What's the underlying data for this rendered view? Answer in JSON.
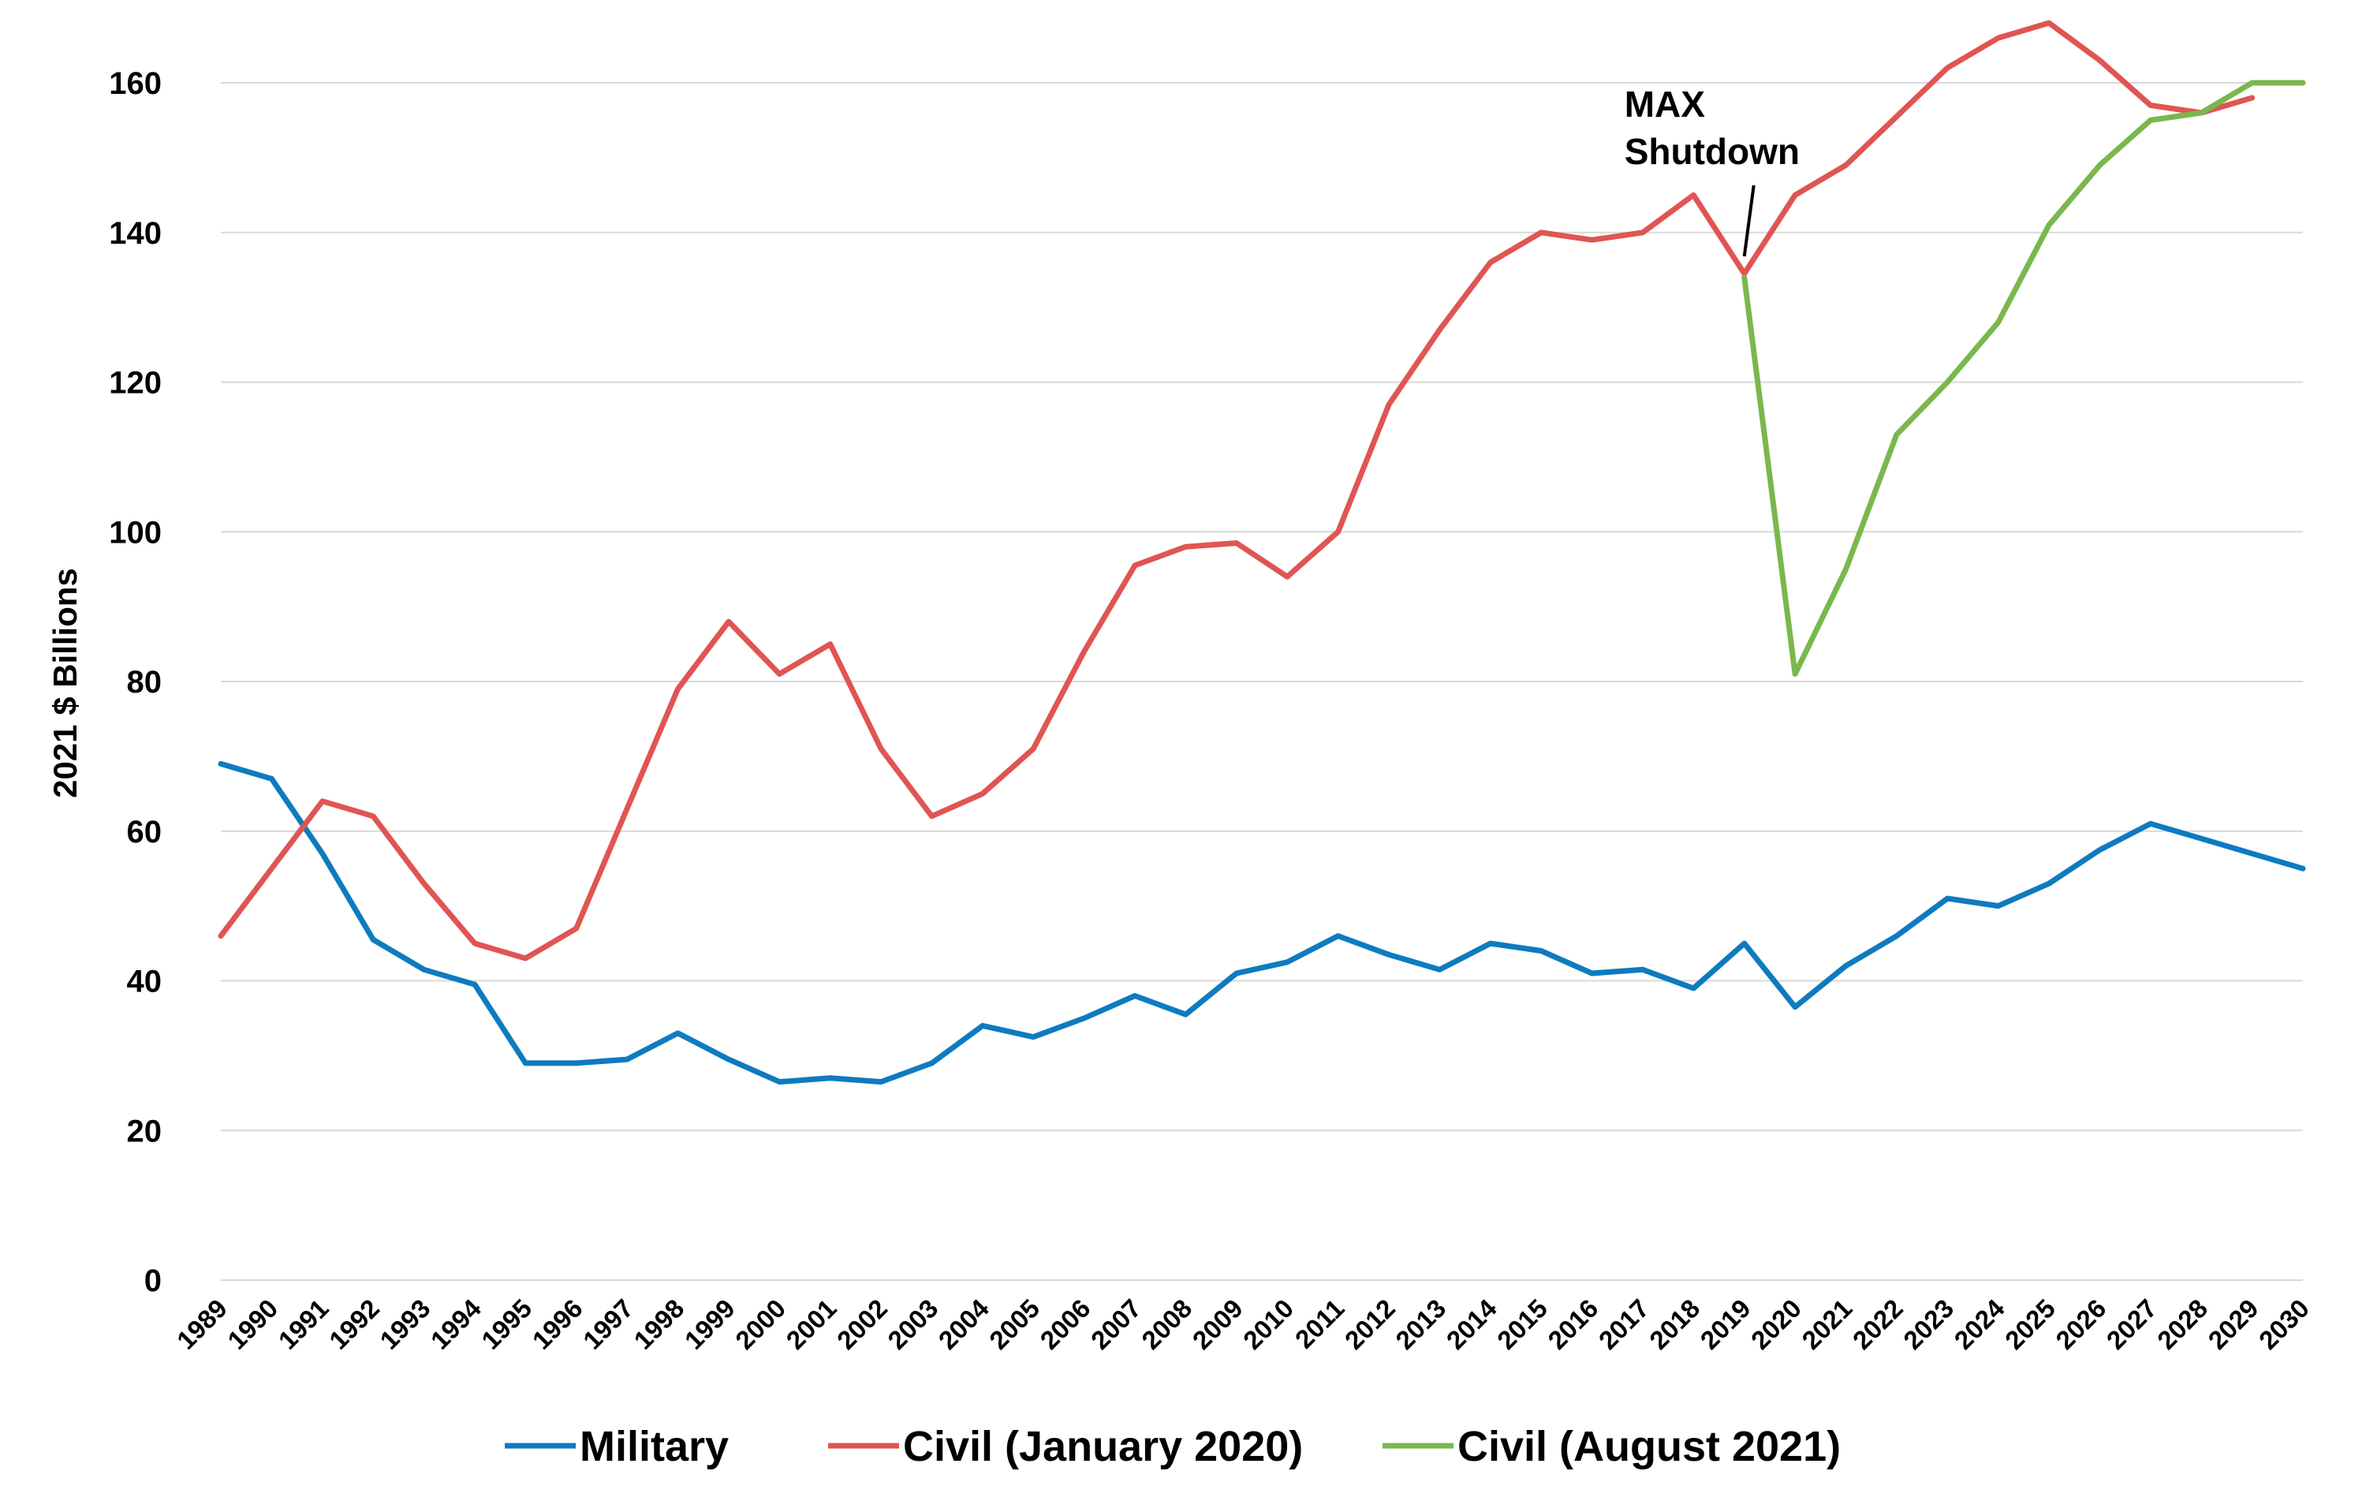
{
  "chart_data": {
    "type": "line",
    "title": "",
    "xlabel": "",
    "ylabel": "2021 $ Billions",
    "ylim": [
      0,
      160
    ],
    "y_ticks": [
      0,
      20,
      40,
      60,
      80,
      100,
      120,
      140,
      160
    ],
    "grid": true,
    "legend_position": "bottom",
    "x": [
      "1989",
      "1990",
      "1991",
      "1992",
      "1993",
      "1994",
      "1995",
      "1996",
      "1997",
      "1998",
      "1999",
      "2000",
      "2001",
      "2002",
      "2003",
      "2004",
      "2005",
      "2006",
      "2007",
      "2008",
      "2009",
      "2010",
      "2011",
      "2012",
      "2013",
      "2014",
      "2015",
      "2016",
      "2017",
      "2018",
      "2019",
      "2020",
      "2021",
      "2022",
      "2023",
      "2024",
      "2025",
      "2026",
      "2027",
      "2028",
      "2029",
      "2030"
    ],
    "series": [
      {
        "name": "Military",
        "color": "#0e7bbf",
        "values": [
          69,
          67,
          57,
          45.5,
          41.5,
          39.5,
          29,
          29,
          29.5,
          33,
          29.5,
          26.5,
          27,
          26.5,
          29,
          34,
          32.5,
          35,
          38,
          35.5,
          41,
          42.5,
          46,
          43.5,
          41.5,
          45,
          44,
          41,
          41.5,
          39,
          45,
          36.5,
          42,
          46,
          51,
          50,
          53,
          57.5,
          61,
          59,
          57,
          55
        ]
      },
      {
        "name": "Civil (January 2020)",
        "color": "#e05552",
        "values": [
          46,
          55,
          64,
          62,
          53,
          45,
          43,
          47,
          63,
          79,
          88,
          81,
          85,
          71,
          62,
          65,
          71,
          84,
          95.5,
          98,
          98.5,
          94,
          100,
          117,
          127,
          136,
          140,
          139,
          140,
          145,
          134.5,
          145,
          149,
          155.5,
          162,
          166,
          168,
          163,
          157,
          156,
          158,
          null
        ]
      },
      {
        "name": "Civil (August 2021)",
        "color": "#79b84d",
        "values": [
          null,
          null,
          null,
          null,
          null,
          null,
          null,
          null,
          null,
          null,
          null,
          null,
          null,
          null,
          null,
          null,
          null,
          null,
          null,
          null,
          null,
          null,
          null,
          null,
          null,
          null,
          null,
          null,
          null,
          null,
          134,
          81,
          95,
          113,
          120,
          128,
          141,
          149,
          155,
          156,
          160,
          160
        ]
      }
    ],
    "annotations": [
      {
        "line1": "MAX",
        "line2": "Shutdown",
        "x": "2019"
      }
    ]
  }
}
